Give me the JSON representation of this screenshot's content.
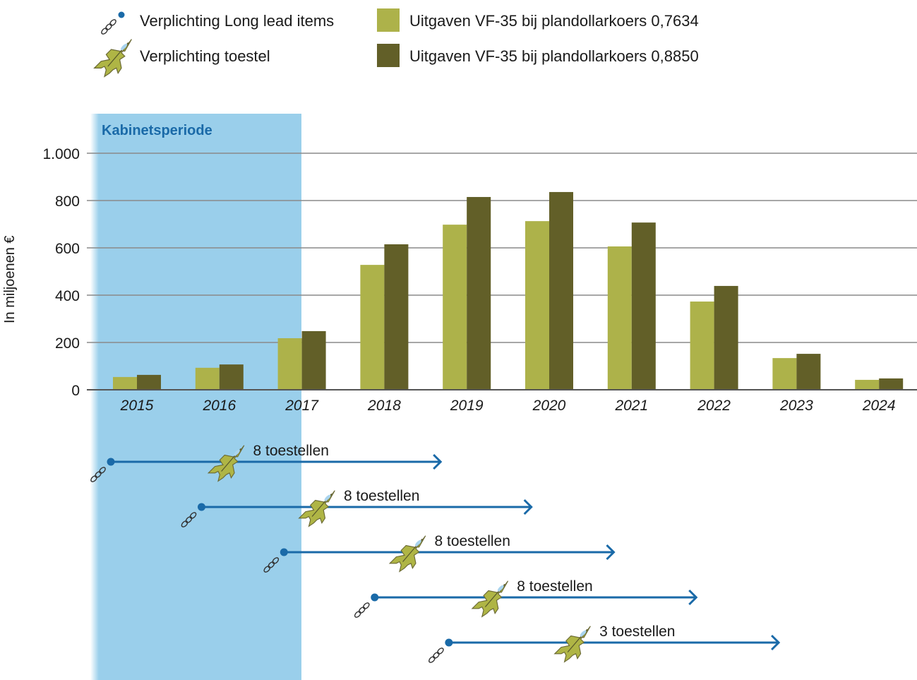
{
  "colors": {
    "series_light": "#adb24a",
    "series_dark": "#625f28",
    "band": "#9acfeb",
    "timeline": "#1a6aa8",
    "grid": "#8a8a8a",
    "jet": "#afb545"
  },
  "legend": {
    "long_lead": "Verplichting Long lead items",
    "toestel": "Verplichting toestel",
    "series_light": "Uitgaven VF-35 bij plandollarkoers 0,7634",
    "series_dark": "Uitgaven VF-35 bij plandollarkoers 0,8850"
  },
  "band_label": "Kabinetsperiode",
  "chart_data": {
    "type": "bar",
    "title": "",
    "xlabel": "",
    "ylabel": "In miljoenen €",
    "ylim": [
      0,
      1000
    ],
    "yticks": [
      0,
      200,
      400,
      600,
      800,
      1000
    ],
    "ytick_labels": [
      "0",
      "200",
      "400",
      "600",
      "800",
      "1.000"
    ],
    "grid": true,
    "legend_position": "top",
    "categories": [
      "2015",
      "2016",
      "2017",
      "2018",
      "2019",
      "2020",
      "2021",
      "2022",
      "2023",
      "2024"
    ],
    "series": [
      {
        "name": "Uitgaven VF-35 bij plandollarkoers 0,7634",
        "values": [
          54,
          93,
          218,
          528,
          698,
          713,
          606,
          373,
          134,
          42
        ]
      },
      {
        "name": "Uitgaven VF-35 bij plandollarkoers 0,8850",
        "values": [
          63,
          107,
          248,
          615,
          815,
          836,
          707,
          439,
          152,
          48
        ]
      }
    ],
    "highlight_band": {
      "label": "Kabinetsperiode",
      "from": "2015",
      "to": "2017"
    }
  },
  "timelines": [
    {
      "label": "8 toestellen",
      "start": 2015.0,
      "jet": 2016.4,
      "end": 2019.0
    },
    {
      "label": "8 toestellen",
      "start": 2016.1,
      "jet": 2017.5,
      "end": 2020.1
    },
    {
      "label": "8 toestellen",
      "start": 2017.1,
      "jet": 2018.6,
      "end": 2021.1
    },
    {
      "label": "8 toestellen",
      "start": 2018.2,
      "jet": 2019.6,
      "end": 2022.1
    },
    {
      "label": "3 toestellen",
      "start": 2019.1,
      "jet": 2020.6,
      "end": 2023.1
    }
  ]
}
